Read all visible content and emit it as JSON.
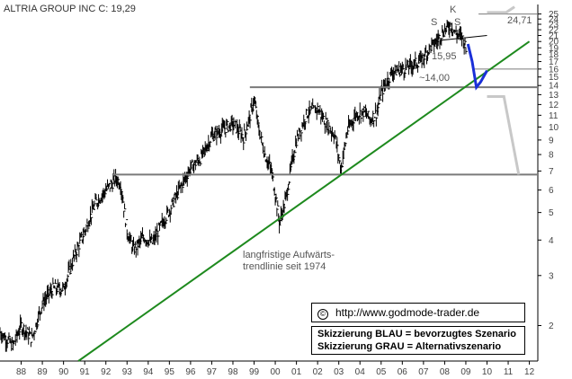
{
  "chart_data": {
    "type": "bar",
    "title": "ALTRIA GROUP INC C: 19,29",
    "y_scale": "log",
    "ylim": [
      1.5,
      27
    ],
    "xlim": [
      1987.0,
      2012.4
    ],
    "x_ticks": [
      "88",
      "89",
      "90",
      "91",
      "92",
      "93",
      "94",
      "95",
      "96",
      "97",
      "98",
      "99",
      "00",
      "01",
      "02",
      "03",
      "04",
      "05",
      "06",
      "07",
      "08",
      "09",
      "10",
      "11",
      "12"
    ],
    "y_ticks": [
      "2",
      "3",
      "4",
      "5",
      "6",
      "7",
      "8",
      "9",
      "10",
      "11",
      "12",
      "13",
      "14",
      "15",
      "16",
      "17",
      "18",
      "19",
      "20",
      "21",
      "22",
      "23",
      "24",
      "25"
    ],
    "price_path": [
      [
        1987.0,
        1.9
      ],
      [
        1987.6,
        1.7
      ],
      [
        1988.0,
        2.0
      ],
      [
        1988.5,
        1.8
      ],
      [
        1989.0,
        2.4
      ],
      [
        1989.5,
        2.7
      ],
      [
        1990.0,
        2.7
      ],
      [
        1990.5,
        3.5
      ],
      [
        1991.0,
        4.3
      ],
      [
        1991.5,
        5.4
      ],
      [
        1992.0,
        6.0
      ],
      [
        1992.5,
        6.6
      ],
      [
        1992.7,
        6.3
      ],
      [
        1993.0,
        4.3
      ],
      [
        1993.3,
        3.7
      ],
      [
        1993.8,
        4.1
      ],
      [
        1994.2,
        3.9
      ],
      [
        1994.6,
        4.5
      ],
      [
        1995.0,
        5.1
      ],
      [
        1995.5,
        6.1
      ],
      [
        1996.0,
        7.2
      ],
      [
        1996.5,
        7.8
      ],
      [
        1997.0,
        9.3
      ],
      [
        1997.5,
        9.8
      ],
      [
        1998.0,
        10.3
      ],
      [
        1998.5,
        9.2
      ],
      [
        1998.8,
        10.9
      ],
      [
        1999.0,
        12.5
      ],
      [
        1999.2,
        10.0
      ],
      [
        1999.5,
        8.0
      ],
      [
        1999.8,
        7.1
      ],
      [
        2000.0,
        5.8
      ],
      [
        2000.2,
        4.6
      ],
      [
        2000.5,
        5.6
      ],
      [
        2000.8,
        7.6
      ],
      [
        2001.0,
        9.0
      ],
      [
        2001.5,
        11.2
      ],
      [
        2002.0,
        11.6
      ],
      [
        2002.5,
        10.0
      ],
      [
        2002.8,
        9.4
      ],
      [
        2003.1,
        7.1
      ],
      [
        2003.4,
        9.7
      ],
      [
        2003.8,
        11.1
      ],
      [
        2004.2,
        11.3
      ],
      [
        2004.5,
        10.6
      ],
      [
        2004.8,
        11.3
      ],
      [
        2005.0,
        13.2
      ],
      [
        2005.5,
        15.6
      ],
      [
        2006.0,
        16.0
      ],
      [
        2006.5,
        16.6
      ],
      [
        2006.9,
        17.2
      ],
      [
        2007.3,
        19.0
      ],
      [
        2007.6,
        20.0
      ],
      [
        2007.9,
        21.5
      ],
      [
        2008.0,
        22.0
      ],
      [
        2008.3,
        23.0
      ],
      [
        2008.5,
        21.4
      ],
      [
        2008.8,
        20.8
      ],
      [
        2009.0,
        19.3
      ]
    ],
    "support_lines": [
      6.8,
      13.8,
      16.0,
      25.0
    ],
    "trendline": [
      [
        1990.7,
        1.5
      ],
      [
        2012.0,
        20.0
      ]
    ],
    "scenario_blue": [
      [
        2009.1,
        19.6
      ],
      [
        2009.3,
        17.0
      ],
      [
        2009.5,
        13.8
      ],
      [
        2009.7,
        14.4
      ],
      [
        2010.0,
        15.8
      ]
    ],
    "scenario_grey": [
      [
        2010.0,
        25.3
      ],
      [
        2010.9,
        25.3
      ],
      [
        2011.3,
        26.5
      ]
    ],
    "scenario_grey_down": [
      [
        2010.0,
        12.8
      ],
      [
        2010.8,
        12.8
      ],
      [
        2011.5,
        6.8
      ]
    ],
    "annotations": {
      "k_label": "K",
      "s_left": "S",
      "s_right": "S",
      "level_high": "24,71",
      "level_mid": "15,95",
      "level_low": "~14,00",
      "trend_text_line1": "langfristige Aufwärts-",
      "trend_text_line2": "trendlinie seit 1974"
    },
    "colors": {
      "price": "#000000",
      "support": "#7a7a7a",
      "trendline": "#1e8a1e",
      "scenario_blue": "#1a2fd8",
      "scenario_grey": "#c8c8c8"
    }
  },
  "copyright": {
    "symbol": "©",
    "text": "http://www.godmode-trader.de"
  },
  "legend": {
    "line1": "Skizzierung BLAU = bevorzugtes Szenario",
    "line2": "Skizzierung GRAU = Alternativszenario"
  }
}
